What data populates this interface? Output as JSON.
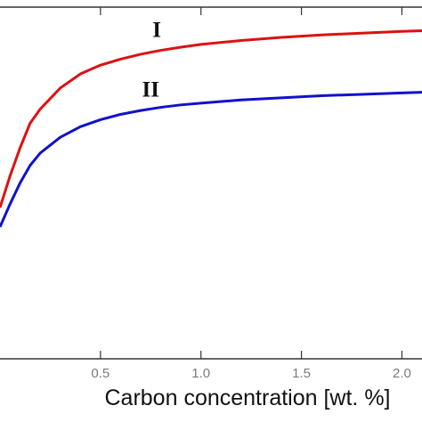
{
  "chart_data": {
    "type": "line",
    "xlabel": "Carbon concentration [wt. %]",
    "ylabel": "",
    "title": "",
    "xlim": [
      0.0,
      2.1
    ],
    "ylim": [
      0,
      1
    ],
    "x_ticks": [
      0.5,
      1.0,
      1.5,
      2.0
    ],
    "x_tick_labels": [
      "0.5",
      "1.0",
      "1.5",
      "2.0"
    ],
    "grid": false,
    "legend": "none",
    "series": [
      {
        "name": "I",
        "color": "#dd1111",
        "x": [
          0.0,
          0.05,
          0.1,
          0.15,
          0.2,
          0.3,
          0.4,
          0.5,
          0.6,
          0.7,
          0.8,
          0.9,
          1.0,
          1.2,
          1.4,
          1.6,
          1.8,
          2.0,
          2.1
        ],
        "y": [
          0.43,
          0.52,
          0.6,
          0.67,
          0.71,
          0.77,
          0.81,
          0.835,
          0.852,
          0.866,
          0.877,
          0.886,
          0.894,
          0.905,
          0.914,
          0.921,
          0.926,
          0.931,
          0.933
        ]
      },
      {
        "name": "II",
        "color": "#1111cc",
        "x": [
          0.0,
          0.05,
          0.1,
          0.15,
          0.2,
          0.3,
          0.4,
          0.5,
          0.6,
          0.7,
          0.8,
          0.9,
          1.0,
          1.2,
          1.4,
          1.6,
          1.8,
          2.0,
          2.1
        ],
        "y": [
          0.375,
          0.44,
          0.5,
          0.55,
          0.585,
          0.63,
          0.66,
          0.68,
          0.695,
          0.706,
          0.715,
          0.722,
          0.727,
          0.736,
          0.742,
          0.748,
          0.752,
          0.756,
          0.758
        ]
      }
    ],
    "annotations": [
      {
        "text": "I",
        "x": 0.78,
        "y": 0.915
      },
      {
        "text": "II",
        "x": 0.75,
        "y": 0.745
      }
    ]
  }
}
